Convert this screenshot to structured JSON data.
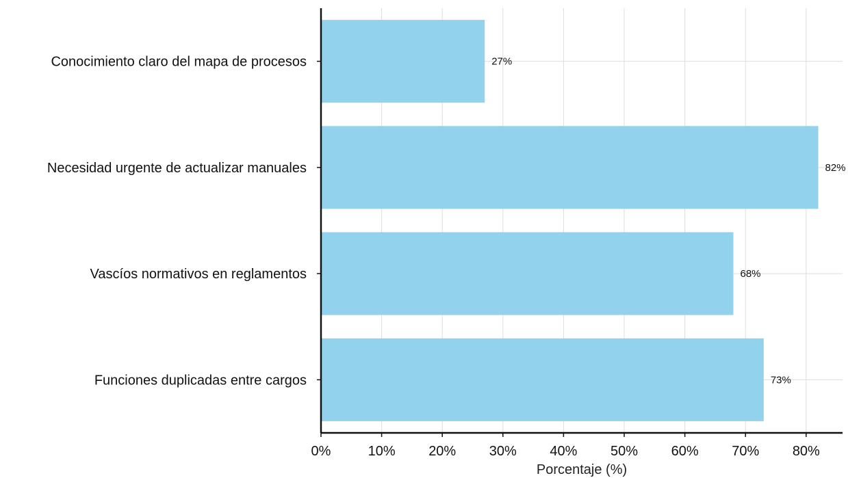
{
  "chart_data": {
    "type": "bar",
    "orientation": "horizontal",
    "categories": [
      "Conocimiento claro del mapa de procesos",
      "Necesidad urgente de actualizar manuales",
      "Vascíos normativos en reglamentos",
      "Funciones duplicadas entre cargos"
    ],
    "values": [
      27,
      82,
      68,
      73
    ],
    "data_labels": [
      "27%",
      "82%",
      "68%",
      "73%"
    ],
    "title": "",
    "xlabel": "Porcentaje (%)",
    "ylabel": "",
    "xlim": [
      0,
      86
    ],
    "xticks": [
      0,
      10,
      20,
      30,
      40,
      50,
      60,
      70,
      80
    ],
    "xtick_labels": [
      "0%",
      "10%",
      "20%",
      "30%",
      "40%",
      "50%",
      "60%",
      "70%",
      "80%"
    ],
    "grid": true,
    "bar_color": "#93d2ec",
    "legend": "none"
  }
}
